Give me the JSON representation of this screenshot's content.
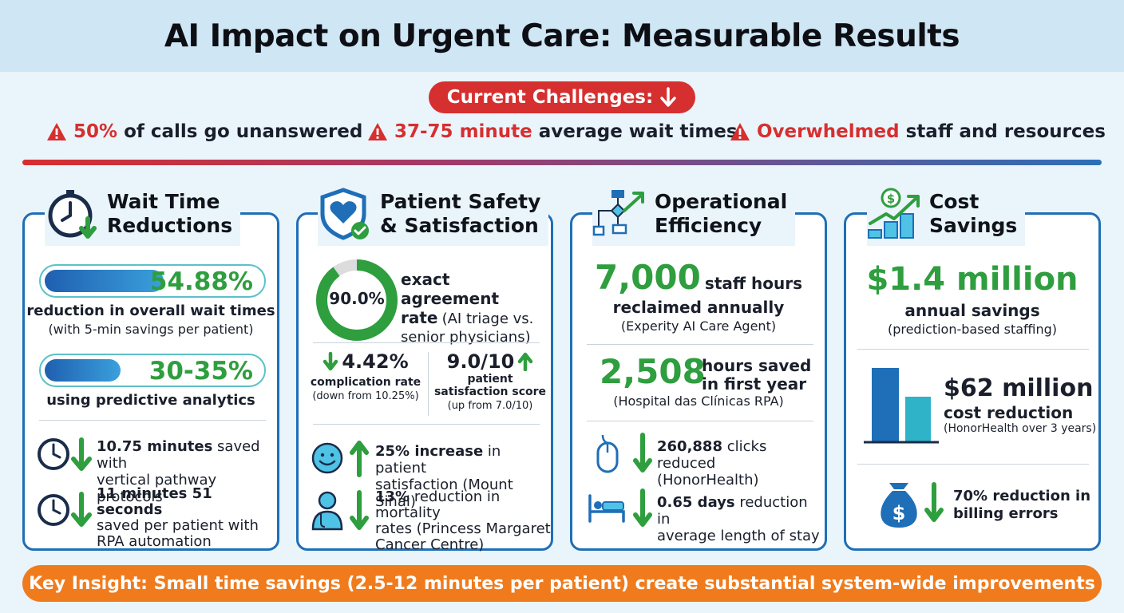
{
  "title": "AI Impact on Urgent Care: Measurable Results",
  "challenges": {
    "label": "Current Challenges:",
    "items": [
      {
        "highlight": "50%",
        "rest": "of calls go unanswered"
      },
      {
        "highlight": "37-75 minute",
        "rest": "average wait times"
      },
      {
        "highlight": "Overwhelmed",
        "rest": "staff and resources"
      }
    ]
  },
  "cards": {
    "wait": {
      "title": "Wait Time\nReductions",
      "bar1": {
        "value": "54.88%",
        "fill": 0.55,
        "line1": "reduction in overall wait times",
        "line2": "(with 5-min savings per patient)"
      },
      "bar2": {
        "value": "30-35%",
        "fill": 0.35,
        "line1": "using predictive analytics"
      },
      "item1": {
        "bold": "10.75 minutes",
        "rest": "saved with",
        "line2": "vertical pathway protocols"
      },
      "item2": {
        "bold": "11 minutes 51 seconds",
        "line2": "saved per patient with",
        "line3": "RPA automation"
      }
    },
    "safety": {
      "title": "Patient Safety\n& Satisfaction",
      "ring": {
        "value": "90.0%",
        "fraction": 0.9
      },
      "agreement": {
        "bold1": "exact agreement",
        "bold2": "rate",
        "rest2": "(AI triage vs.",
        "line3": "senior physicians)"
      },
      "complication": {
        "value": "4.42%",
        "label": "complication rate",
        "note": "(down from 10.25%)"
      },
      "satisfaction": {
        "value": "9.0/10",
        "label1": "patient",
        "label2": "satisfaction score",
        "note": "(up from 7.0/10)"
      },
      "item1": {
        "bold": "25% increase",
        "rest": "in patient",
        "line2": "satisfaction (Mount Sinai)"
      },
      "item2": {
        "bold": "13%",
        "rest": "reduction in mortality",
        "line2": "rates (Princess Margaret",
        "line3": "Cancer Centre)"
      }
    },
    "ops": {
      "title": "Operational\nEfficiency",
      "stat1": {
        "value": "7,000",
        "label1": "staff hours",
        "label2": "reclaimed annually",
        "note": "(Experity AI Care Agent)"
      },
      "stat2": {
        "value": "2,508",
        "label1": "hours saved",
        "label2": "in first year",
        "note": "(Hospital das Clínicas RPA)"
      },
      "item1": {
        "bold": "260,888",
        "rest": "clicks reduced",
        "line2": "(HonorHealth)"
      },
      "item2": {
        "bold": "0.65 days",
        "rest": "reduction in",
        "line2": "average length of stay"
      }
    },
    "cost": {
      "title": "Cost\nSavings",
      "stat1": {
        "value": "$1.4 million",
        "label": "annual savings",
        "note": "(prediction-based staffing)"
      },
      "stat2": {
        "value": "$62 million",
        "label": "cost reduction",
        "note": "(HonorHealth over 3 years)"
      },
      "item1": {
        "line1": "70% reduction in",
        "line2": "billing errors"
      }
    }
  },
  "footer": "Key Insight: Small time savings (2.5-12 minutes per patient) create substantial system-wide improvements",
  "colors": {
    "accent_red": "#d62f2f",
    "accent_green": "#2e9e3e",
    "accent_blue": "#1e6fb7",
    "footer_orange": "#f07b1d"
  },
  "icons": [
    "warning-icon",
    "arrow-down-icon",
    "clock-icon",
    "shield-heart-icon",
    "flowchart-icon",
    "money-growth-icon",
    "smiley-icon",
    "doctor-icon",
    "mouse-icon",
    "hospital-bed-icon",
    "money-bag-icon",
    "arrow-up-icon"
  ]
}
